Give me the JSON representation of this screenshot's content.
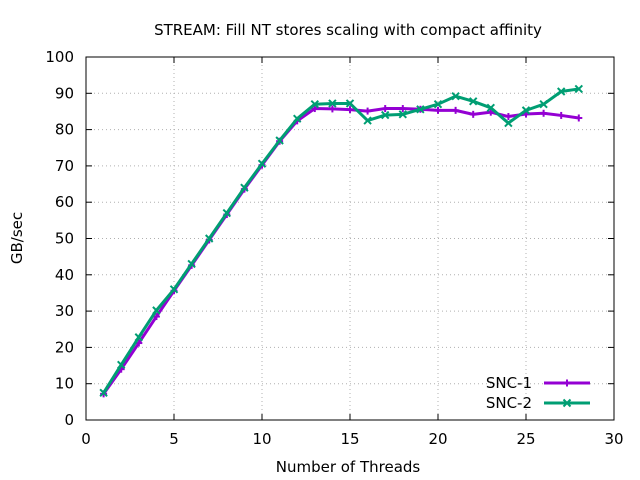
{
  "chart_data": {
    "type": "line",
    "title": "STREAM: Fill NT stores scaling with compact affinity",
    "xlabel": "Number of Threads",
    "ylabel": "GB/sec",
    "xlim": [
      0,
      30
    ],
    "ylim": [
      0,
      100
    ],
    "xticks": [
      0,
      5,
      10,
      15,
      20,
      25,
      30
    ],
    "yticks": [
      0,
      10,
      20,
      30,
      40,
      50,
      60,
      70,
      80,
      90,
      100
    ],
    "grid": true,
    "legend_position": "bottom-right",
    "x": [
      1,
      2,
      3,
      4,
      5,
      6,
      7,
      8,
      9,
      10,
      11,
      12,
      13,
      14,
      15,
      16,
      17,
      18,
      19,
      20,
      21,
      22,
      23,
      24,
      25,
      26,
      27,
      28
    ],
    "series": [
      {
        "name": "SNC-1",
        "color": "#9400d3",
        "marker": "plus",
        "values": [
          7.2,
          14.0,
          21.2,
          28.5,
          35.6,
          42.6,
          49.6,
          56.6,
          63.6,
          70.2,
          76.8,
          82.4,
          85.8,
          85.7,
          85.5,
          85.1,
          85.8,
          85.8,
          85.6,
          85.3,
          85.3,
          84.2,
          84.8,
          83.6,
          84.3,
          84.5,
          83.9,
          83.2
        ]
      },
      {
        "name": "SNC-2",
        "color": "#009e73",
        "marker": "cross",
        "values": [
          7.5,
          15.2,
          22.8,
          30.2,
          36.0,
          43.0,
          50.0,
          57.0,
          64.0,
          70.6,
          77.0,
          83.0,
          87.0,
          87.2,
          87.2,
          82.5,
          84.0,
          84.2,
          85.6,
          87.0,
          89.2,
          87.8,
          86.0,
          81.8,
          85.3,
          87.0,
          90.5,
          91.2
        ]
      }
    ]
  }
}
